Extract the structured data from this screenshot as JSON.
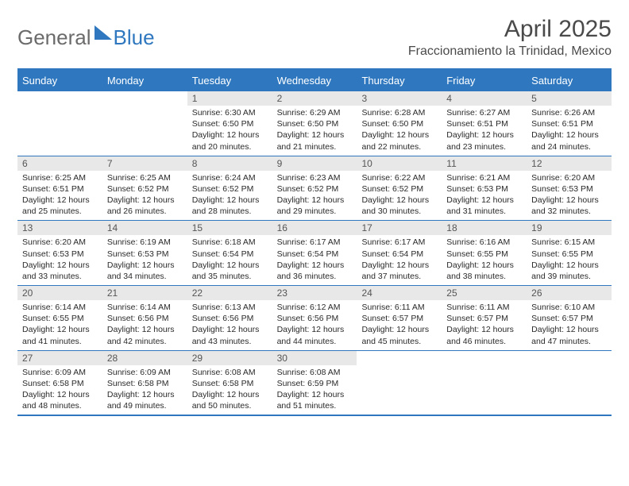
{
  "brand": {
    "part1": "General",
    "part2": "Blue"
  },
  "title": "April 2025",
  "location": "Fraccionamiento la Trinidad, Mexico",
  "colors": {
    "accent": "#2f78bf",
    "header_bg": "#e8e8e8",
    "text": "#2a2a2a",
    "muted": "#6b6b6b",
    "white": "#ffffff"
  },
  "day_names": [
    "Sunday",
    "Monday",
    "Tuesday",
    "Wednesday",
    "Thursday",
    "Friday",
    "Saturday"
  ],
  "weeks": [
    [
      {
        "n": "",
        "sr": "",
        "ss": "",
        "dl": ""
      },
      {
        "n": "",
        "sr": "",
        "ss": "",
        "dl": ""
      },
      {
        "n": "1",
        "sr": "Sunrise: 6:30 AM",
        "ss": "Sunset: 6:50 PM",
        "dl": "Daylight: 12 hours and 20 minutes."
      },
      {
        "n": "2",
        "sr": "Sunrise: 6:29 AM",
        "ss": "Sunset: 6:50 PM",
        "dl": "Daylight: 12 hours and 21 minutes."
      },
      {
        "n": "3",
        "sr": "Sunrise: 6:28 AM",
        "ss": "Sunset: 6:50 PM",
        "dl": "Daylight: 12 hours and 22 minutes."
      },
      {
        "n": "4",
        "sr": "Sunrise: 6:27 AM",
        "ss": "Sunset: 6:51 PM",
        "dl": "Daylight: 12 hours and 23 minutes."
      },
      {
        "n": "5",
        "sr": "Sunrise: 6:26 AM",
        "ss": "Sunset: 6:51 PM",
        "dl": "Daylight: 12 hours and 24 minutes."
      }
    ],
    [
      {
        "n": "6",
        "sr": "Sunrise: 6:25 AM",
        "ss": "Sunset: 6:51 PM",
        "dl": "Daylight: 12 hours and 25 minutes."
      },
      {
        "n": "7",
        "sr": "Sunrise: 6:25 AM",
        "ss": "Sunset: 6:52 PM",
        "dl": "Daylight: 12 hours and 26 minutes."
      },
      {
        "n": "8",
        "sr": "Sunrise: 6:24 AM",
        "ss": "Sunset: 6:52 PM",
        "dl": "Daylight: 12 hours and 28 minutes."
      },
      {
        "n": "9",
        "sr": "Sunrise: 6:23 AM",
        "ss": "Sunset: 6:52 PM",
        "dl": "Daylight: 12 hours and 29 minutes."
      },
      {
        "n": "10",
        "sr": "Sunrise: 6:22 AM",
        "ss": "Sunset: 6:52 PM",
        "dl": "Daylight: 12 hours and 30 minutes."
      },
      {
        "n": "11",
        "sr": "Sunrise: 6:21 AM",
        "ss": "Sunset: 6:53 PM",
        "dl": "Daylight: 12 hours and 31 minutes."
      },
      {
        "n": "12",
        "sr": "Sunrise: 6:20 AM",
        "ss": "Sunset: 6:53 PM",
        "dl": "Daylight: 12 hours and 32 minutes."
      }
    ],
    [
      {
        "n": "13",
        "sr": "Sunrise: 6:20 AM",
        "ss": "Sunset: 6:53 PM",
        "dl": "Daylight: 12 hours and 33 minutes."
      },
      {
        "n": "14",
        "sr": "Sunrise: 6:19 AM",
        "ss": "Sunset: 6:53 PM",
        "dl": "Daylight: 12 hours and 34 minutes."
      },
      {
        "n": "15",
        "sr": "Sunrise: 6:18 AM",
        "ss": "Sunset: 6:54 PM",
        "dl": "Daylight: 12 hours and 35 minutes."
      },
      {
        "n": "16",
        "sr": "Sunrise: 6:17 AM",
        "ss": "Sunset: 6:54 PM",
        "dl": "Daylight: 12 hours and 36 minutes."
      },
      {
        "n": "17",
        "sr": "Sunrise: 6:17 AM",
        "ss": "Sunset: 6:54 PM",
        "dl": "Daylight: 12 hours and 37 minutes."
      },
      {
        "n": "18",
        "sr": "Sunrise: 6:16 AM",
        "ss": "Sunset: 6:55 PM",
        "dl": "Daylight: 12 hours and 38 minutes."
      },
      {
        "n": "19",
        "sr": "Sunrise: 6:15 AM",
        "ss": "Sunset: 6:55 PM",
        "dl": "Daylight: 12 hours and 39 minutes."
      }
    ],
    [
      {
        "n": "20",
        "sr": "Sunrise: 6:14 AM",
        "ss": "Sunset: 6:55 PM",
        "dl": "Daylight: 12 hours and 41 minutes."
      },
      {
        "n": "21",
        "sr": "Sunrise: 6:14 AM",
        "ss": "Sunset: 6:56 PM",
        "dl": "Daylight: 12 hours and 42 minutes."
      },
      {
        "n": "22",
        "sr": "Sunrise: 6:13 AM",
        "ss": "Sunset: 6:56 PM",
        "dl": "Daylight: 12 hours and 43 minutes."
      },
      {
        "n": "23",
        "sr": "Sunrise: 6:12 AM",
        "ss": "Sunset: 6:56 PM",
        "dl": "Daylight: 12 hours and 44 minutes."
      },
      {
        "n": "24",
        "sr": "Sunrise: 6:11 AM",
        "ss": "Sunset: 6:57 PM",
        "dl": "Daylight: 12 hours and 45 minutes."
      },
      {
        "n": "25",
        "sr": "Sunrise: 6:11 AM",
        "ss": "Sunset: 6:57 PM",
        "dl": "Daylight: 12 hours and 46 minutes."
      },
      {
        "n": "26",
        "sr": "Sunrise: 6:10 AM",
        "ss": "Sunset: 6:57 PM",
        "dl": "Daylight: 12 hours and 47 minutes."
      }
    ],
    [
      {
        "n": "27",
        "sr": "Sunrise: 6:09 AM",
        "ss": "Sunset: 6:58 PM",
        "dl": "Daylight: 12 hours and 48 minutes."
      },
      {
        "n": "28",
        "sr": "Sunrise: 6:09 AM",
        "ss": "Sunset: 6:58 PM",
        "dl": "Daylight: 12 hours and 49 minutes."
      },
      {
        "n": "29",
        "sr": "Sunrise: 6:08 AM",
        "ss": "Sunset: 6:58 PM",
        "dl": "Daylight: 12 hours and 50 minutes."
      },
      {
        "n": "30",
        "sr": "Sunrise: 6:08 AM",
        "ss": "Sunset: 6:59 PM",
        "dl": "Daylight: 12 hours and 51 minutes."
      },
      {
        "n": "",
        "sr": "",
        "ss": "",
        "dl": ""
      },
      {
        "n": "",
        "sr": "",
        "ss": "",
        "dl": ""
      },
      {
        "n": "",
        "sr": "",
        "ss": "",
        "dl": ""
      }
    ]
  ]
}
